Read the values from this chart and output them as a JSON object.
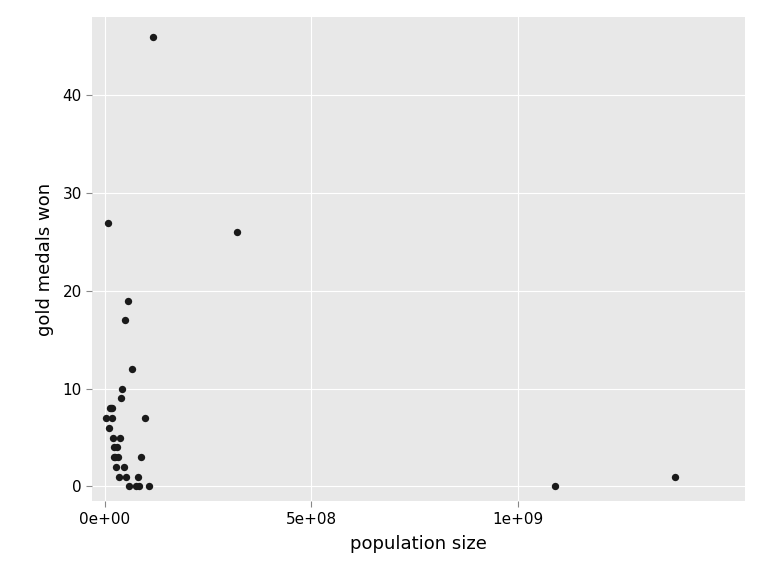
{
  "title": "",
  "xlabel": "population size",
  "ylabel": "gold medals won",
  "background_color": "#E8E8E8",
  "point_color": "#1a1a1a",
  "point_size": 28,
  "x_values": [
    4000000,
    9000000,
    11000000,
    14000000,
    16000000,
    17000000,
    18000000,
    20000000,
    22000000,
    24000000,
    26000000,
    28000000,
    30000000,
    33000000,
    36000000,
    38000000,
    40000000,
    43000000,
    46000000,
    49000000,
    52000000,
    57000000,
    60000000,
    67000000,
    75000000,
    80000000,
    83000000,
    88000000,
    97000000,
    108000000,
    118000000,
    320000000,
    1090000000,
    1380000000
  ],
  "y_values": [
    7,
    27,
    6,
    8,
    8,
    8,
    7,
    5,
    4,
    3,
    3,
    2,
    4,
    3,
    1,
    5,
    9,
    10,
    2,
    17,
    1,
    19,
    0,
    12,
    0,
    1,
    0,
    3,
    7,
    0,
    46,
    26,
    0,
    1
  ],
  "xlim": [
    -30000000,
    1550000000
  ],
  "ylim": [
    -1.5,
    48
  ],
  "yticks": [
    0,
    10,
    20,
    30,
    40
  ],
  "xtick_positions": [
    0,
    500000000,
    1000000000
  ],
  "xtick_labels": [
    "0e+00",
    "5e+08",
    "1e+09"
  ],
  "grid_color": "#ffffff",
  "grid_linewidth": 0.8
}
